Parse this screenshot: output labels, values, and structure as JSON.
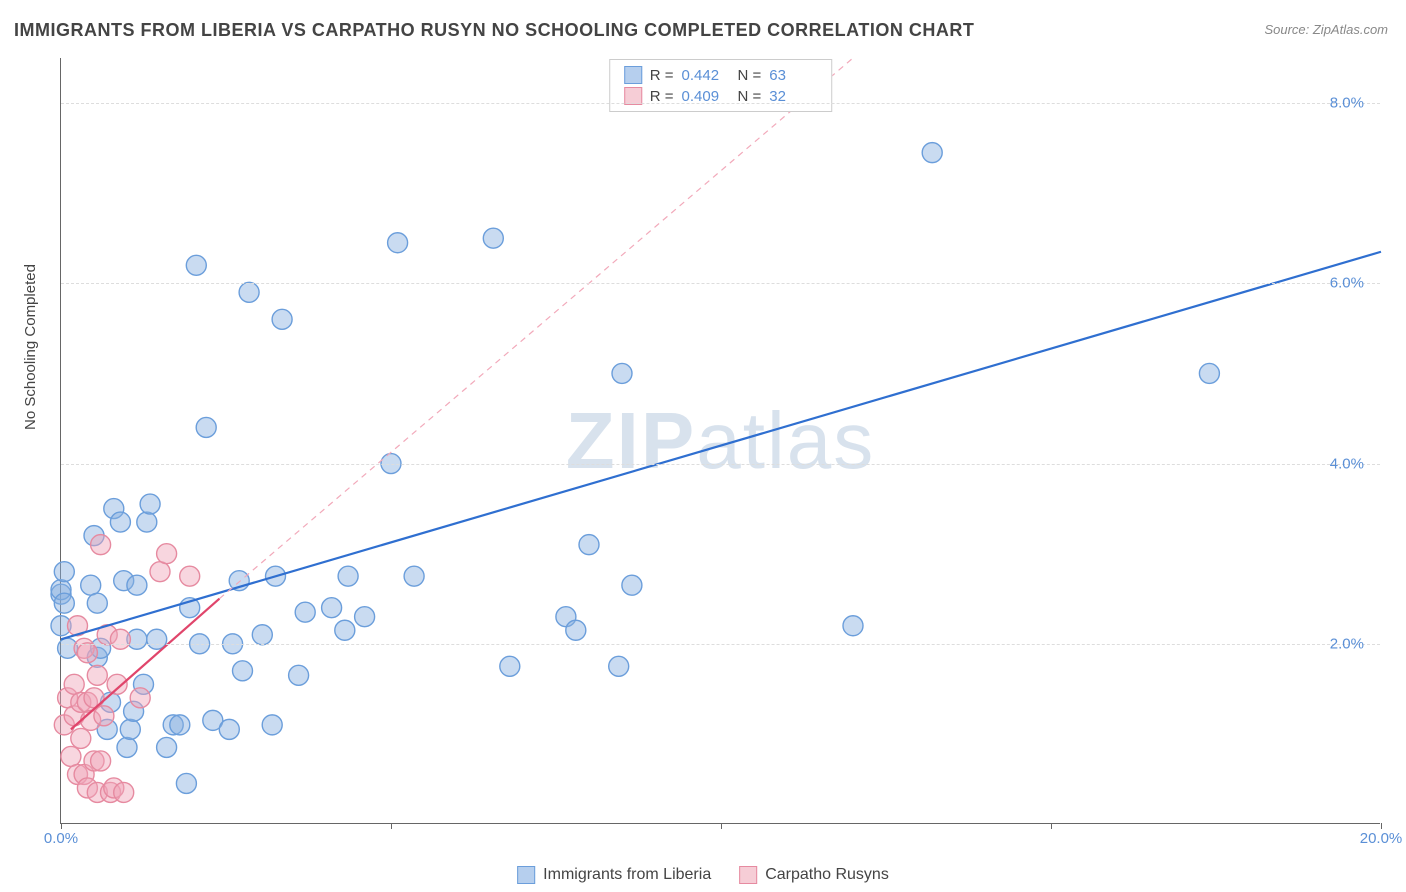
{
  "title": "IMMIGRANTS FROM LIBERIA VS CARPATHO RUSYN NO SCHOOLING COMPLETED CORRELATION CHART",
  "source": "Source: ZipAtlas.com",
  "y_axis_label": "No Schooling Completed",
  "watermark": "ZIPatlas",
  "chart": {
    "type": "scatter",
    "background_color": "#ffffff",
    "grid_color": "#dddddd",
    "axis_color": "#666666",
    "tick_label_color": "#5a8fd6",
    "value_label_color": "#5a8fd6",
    "text_color": "#444444",
    "xlim": [
      0,
      20
    ],
    "ylim": [
      0,
      8.5
    ],
    "x_ticks": [
      0,
      5,
      10,
      15,
      20
    ],
    "x_tick_labels": [
      "0.0%",
      "",
      "",
      "",
      "20.0%"
    ],
    "y_ticks": [
      2,
      4,
      6,
      8
    ],
    "y_tick_labels": [
      "2.0%",
      "4.0%",
      "6.0%",
      "8.0%"
    ],
    "marker_radius": 10,
    "marker_stroke_width": 1.4,
    "line_width_solid": 2.2,
    "line_width_dashed": 1.2,
    "stats": [
      {
        "swatch_fill": "#b6cfee",
        "swatch_stroke": "#6b9edb",
        "r_label": "R =",
        "r_value": "0.442",
        "n_label": "N =",
        "n_value": "63"
      },
      {
        "swatch_fill": "#f6cdd6",
        "swatch_stroke": "#e68aa0",
        "r_label": "R =",
        "r_value": "0.409",
        "n_label": "N =",
        "n_value": "32"
      }
    ],
    "bottom_legend": [
      {
        "swatch_fill": "#b6cfee",
        "swatch_stroke": "#6b9edb",
        "label": "Immigrants from Liberia"
      },
      {
        "swatch_fill": "#f6cdd6",
        "swatch_stroke": "#e68aa0",
        "label": "Carpatho Rusyns"
      }
    ],
    "series": [
      {
        "name": "Immigrants from Liberia",
        "marker_fill": "rgba(135,175,225,0.45)",
        "marker_stroke": "#6b9edb",
        "trend_solid": {
          "color": "#2f6fd0",
          "x1": 0,
          "y1": 2.05,
          "x2": 20,
          "y2": 6.35
        },
        "points": [
          [
            0.0,
            2.2
          ],
          [
            0.0,
            2.55
          ],
          [
            0.0,
            2.6
          ],
          [
            0.05,
            2.8
          ],
          [
            0.05,
            2.45
          ],
          [
            0.1,
            1.95
          ],
          [
            0.45,
            2.65
          ],
          [
            0.5,
            3.2
          ],
          [
            0.55,
            1.85
          ],
          [
            0.55,
            2.45
          ],
          [
            0.6,
            1.95
          ],
          [
            0.7,
            1.05
          ],
          [
            0.75,
            1.35
          ],
          [
            0.8,
            3.5
          ],
          [
            0.9,
            3.35
          ],
          [
            0.95,
            2.7
          ],
          [
            1.0,
            0.85
          ],
          [
            1.05,
            1.05
          ],
          [
            1.1,
            1.25
          ],
          [
            1.15,
            2.65
          ],
          [
            1.15,
            2.05
          ],
          [
            1.25,
            1.55
          ],
          [
            1.3,
            3.35
          ],
          [
            1.35,
            3.55
          ],
          [
            1.45,
            2.05
          ],
          [
            1.6,
            0.85
          ],
          [
            1.7,
            1.1
          ],
          [
            1.8,
            1.1
          ],
          [
            1.9,
            0.45
          ],
          [
            1.95,
            2.4
          ],
          [
            2.05,
            6.2
          ],
          [
            2.1,
            2.0
          ],
          [
            2.2,
            4.4
          ],
          [
            2.3,
            1.15
          ],
          [
            2.55,
            1.05
          ],
          [
            2.6,
            2.0
          ],
          [
            2.7,
            2.7
          ],
          [
            2.75,
            1.7
          ],
          [
            2.85,
            5.9
          ],
          [
            3.05,
            2.1
          ],
          [
            3.2,
            1.1
          ],
          [
            3.25,
            2.75
          ],
          [
            3.35,
            5.6
          ],
          [
            3.6,
            1.65
          ],
          [
            3.7,
            2.35
          ],
          [
            4.1,
            2.4
          ],
          [
            4.3,
            2.15
          ],
          [
            4.35,
            2.75
          ],
          [
            4.6,
            2.3
          ],
          [
            5.0,
            4.0
          ],
          [
            5.1,
            6.45
          ],
          [
            5.35,
            2.75
          ],
          [
            6.55,
            6.5
          ],
          [
            6.8,
            1.75
          ],
          [
            7.65,
            2.3
          ],
          [
            7.8,
            2.15
          ],
          [
            8.0,
            3.1
          ],
          [
            8.45,
            1.75
          ],
          [
            8.5,
            5.0
          ],
          [
            8.65,
            2.65
          ],
          [
            12.0,
            2.2
          ],
          [
            13.2,
            7.45
          ],
          [
            17.4,
            5.0
          ]
        ]
      },
      {
        "name": "Carpatho Rusyns",
        "marker_fill": "rgba(240,165,185,0.45)",
        "marker_stroke": "#e68aa0",
        "trend_solid": {
          "color": "#e0456b",
          "x1": 0.15,
          "y1": 1.05,
          "x2": 2.4,
          "y2": 2.5
        },
        "trend_dashed": {
          "color": "#f2a9ba",
          "x1": 2.4,
          "y1": 2.5,
          "x2": 12.0,
          "y2": 8.5
        },
        "points": [
          [
            0.05,
            1.1
          ],
          [
            0.1,
            1.4
          ],
          [
            0.15,
            0.75
          ],
          [
            0.2,
            1.2
          ],
          [
            0.2,
            1.55
          ],
          [
            0.25,
            0.55
          ],
          [
            0.25,
            2.2
          ],
          [
            0.3,
            1.35
          ],
          [
            0.3,
            0.95
          ],
          [
            0.35,
            0.55
          ],
          [
            0.35,
            1.95
          ],
          [
            0.4,
            0.4
          ],
          [
            0.4,
            1.35
          ],
          [
            0.4,
            1.9
          ],
          [
            0.45,
            1.15
          ],
          [
            0.5,
            0.7
          ],
          [
            0.5,
            1.4
          ],
          [
            0.55,
            0.35
          ],
          [
            0.55,
            1.65
          ],
          [
            0.6,
            0.7
          ],
          [
            0.6,
            3.1
          ],
          [
            0.65,
            1.2
          ],
          [
            0.7,
            2.1
          ],
          [
            0.75,
            0.35
          ],
          [
            0.8,
            0.4
          ],
          [
            0.85,
            1.55
          ],
          [
            0.9,
            2.05
          ],
          [
            0.95,
            0.35
          ],
          [
            1.2,
            1.4
          ],
          [
            1.5,
            2.8
          ],
          [
            1.6,
            3.0
          ],
          [
            1.95,
            2.75
          ]
        ]
      }
    ]
  }
}
